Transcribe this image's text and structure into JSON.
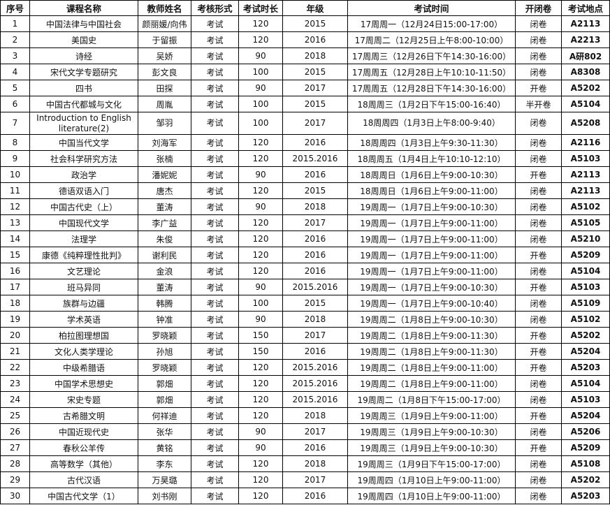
{
  "headers": [
    "序号",
    "课程名称",
    "教师姓名",
    "考核形式",
    "考试时长",
    "年级",
    "考试时间",
    "开闭卷",
    "考试地点"
  ],
  "rows": [
    [
      "1",
      "中国法律与中国社会",
      "颜丽媛/向伟",
      "考试",
      "120",
      "2015",
      "17周周一（12月24日15:00-17:00）",
      "闭卷",
      "A2113"
    ],
    [
      "2",
      "美国史",
      "于留振",
      "考试",
      "120",
      "2016",
      "17周周二（12月25日上午8:00-10:00）",
      "闭卷",
      "A2213"
    ],
    [
      "3",
      "诗经",
      "吴娇",
      "考试",
      "90",
      "2018",
      "17周周三（12月26日下午14:30-16:00）",
      "闭卷",
      "A研802"
    ],
    [
      "4",
      "宋代文学专题研究",
      "彭文良",
      "考试",
      "100",
      "2015",
      "17周周五（12月28日上午10:10-11:50）",
      "闭卷",
      "A8308"
    ],
    [
      "5",
      "四书",
      "田探",
      "考试",
      "90",
      "2017",
      "17周周五（12月28日下午14:30-16:00）",
      "开卷",
      "A5202"
    ],
    [
      "6",
      "中国古代都城与文化",
      "周胤",
      "考试",
      "100",
      "2015",
      "18周周三（1月2日下午15:00-16:40）",
      "半开卷",
      "A5104"
    ],
    [
      "7",
      "Introduction to English literature(2)",
      "邹羽",
      "考试",
      "100",
      "2017",
      "18周周四（1月3日上午8:00-9:40）",
      "闭卷",
      "A5208"
    ],
    [
      "8",
      "中国当代文学",
      "刘海军",
      "考试",
      "120",
      "2016",
      "18周周四（1月3日上午9:30-11:30）",
      "闭卷",
      "A2116"
    ],
    [
      "9",
      "社会科学研究方法",
      "张楠",
      "考试",
      "120",
      "2015.2016",
      "18周周五（1月4日上午10:10-12:10）",
      "闭卷",
      "A5103"
    ],
    [
      "10",
      "政治学",
      "潘妮妮",
      "考试",
      "90",
      "2016",
      "18周周日（1月6日上午9:00-10:30）",
      "开卷",
      "A2113"
    ],
    [
      "11",
      "德语双语入门",
      "唐杰",
      "考试",
      "120",
      "2015",
      "18周周日（1月6日上午9:00-11:00）",
      "闭卷",
      "A2113"
    ],
    [
      "12",
      "中国古代史（上）",
      "董涛",
      "考试",
      "90",
      "2018",
      "19周周一（1月7日上午9:00-10:30）",
      "闭卷",
      "A5102"
    ],
    [
      "13",
      "中国现代文学",
      "李广益",
      "考试",
      "120",
      "2017",
      "19周周一（1月7日上午9:00-11:00）",
      "闭卷",
      "A5105"
    ],
    [
      "14",
      "法理学",
      "朱俊",
      "考试",
      "120",
      "2016",
      "19周周一（1月7日上午9:00-11:00）",
      "闭卷",
      "A5210"
    ],
    [
      "15",
      "康德《纯粹理性批判》",
      "谢利民",
      "考试",
      "120",
      "2016",
      "19周周一（1月7日上午9:00-11:00）",
      "开卷",
      "A5209"
    ],
    [
      "16",
      "文艺理论",
      "金浪",
      "考试",
      "120",
      "2016",
      "19周周一（1月7日上午9:00-11:00）",
      "闭卷",
      "A5104"
    ],
    [
      "17",
      "班马异同",
      "董涛",
      "考试",
      "90",
      "2015.2016",
      "19周周一（1月7日上午9:00-10:30）",
      "开卷",
      "A5103"
    ],
    [
      "18",
      "族群与边疆",
      "韩腾",
      "考试",
      "100",
      "2015",
      "19周周一（1月7日上午9:00-10:40）",
      "闭卷",
      "A5109"
    ],
    [
      "19",
      "学术英语",
      "钟准",
      "考试",
      "90",
      "2018",
      "19周周二（1月8日上午9:00-10:30）",
      "闭卷",
      "A5102"
    ],
    [
      "20",
      "柏拉图理想国",
      "罗晓颖",
      "考试",
      "150",
      "2017",
      "19周周二（1月8日上午9:00-11:30）",
      "开卷",
      "A5202"
    ],
    [
      "21",
      "文化人类学理论",
      "孙旭",
      "考试",
      "150",
      "2016",
      "19周周二（1月8日上午9:00-11:30）",
      "开卷",
      "A5204"
    ],
    [
      "22",
      "中级希腊语",
      "罗晓颖",
      "考试",
      "120",
      "2015.2016",
      "19周周二（1月8日上午9:00-11:00）",
      "开卷",
      "A5203"
    ],
    [
      "23",
      "中国学术思想史",
      "郭畑",
      "考试",
      "120",
      "2015.2016",
      "19周周二（1月8日上午9:00-11:00）",
      "闭卷",
      "A5104"
    ],
    [
      "24",
      "宋史专题",
      "郭畑",
      "考试",
      "120",
      "2015.2016",
      "19周周二（1月8日下午15:00-17:00）",
      "闭卷",
      "A5103"
    ],
    [
      "25",
      "古希腊文明",
      "何祥迪",
      "考试",
      "120",
      "2018",
      "19周周三（1月9日上午9:00-11:00）",
      "开卷",
      "A5204"
    ],
    [
      "26",
      "中国近现代史",
      "张华",
      "考试",
      "90",
      "2017",
      "19周周三（1月9日上午9:00-10:30）",
      "闭卷",
      "A5206"
    ],
    [
      "27",
      "春秋公羊传",
      "黄铭",
      "考试",
      "90",
      "2016",
      "19周周三（1月9日上午9:00-10:30）",
      "开卷",
      "A5209"
    ],
    [
      "28",
      "高等数学（其他）",
      "李东",
      "考试",
      "120",
      "2018",
      "19周周三（1月9日下午15:00-17:00）",
      "闭卷",
      "A5108"
    ],
    [
      "29",
      "古代汉语",
      "万昊璐",
      "考试",
      "120",
      "2017",
      "19周周四（1月10日上午9:00-11:00）",
      "闭卷",
      "A5202"
    ],
    [
      "30",
      "中国古代文学（1）",
      "刘书刚",
      "考试",
      "120",
      "2016",
      "19周周四（1月10日上午9:00-11:00）",
      "闭卷",
      "A5203"
    ]
  ]
}
